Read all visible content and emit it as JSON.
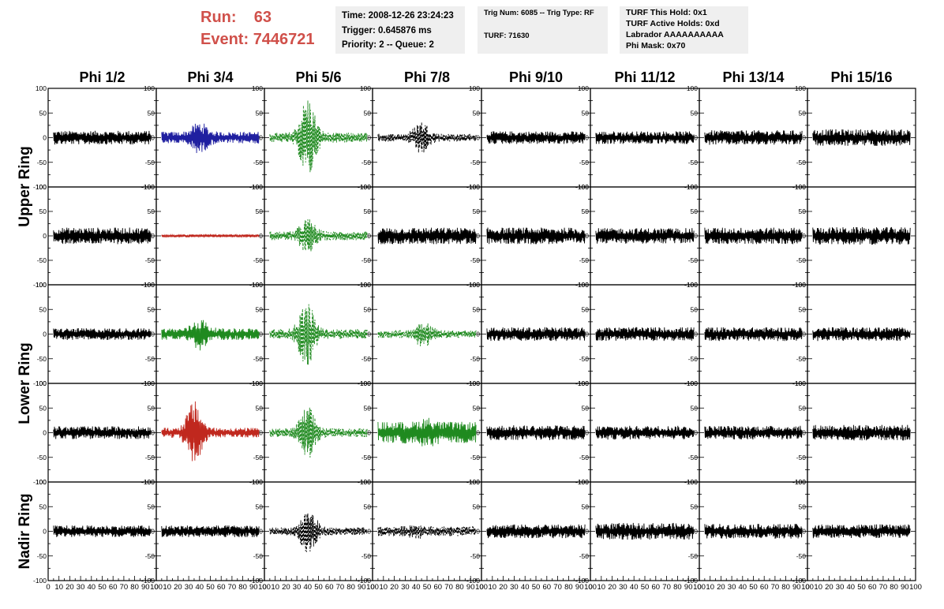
{
  "header": {
    "run_label": "Run:",
    "run_value": "63",
    "event_label": "Event:",
    "event_value": "7446721"
  },
  "info_boxes": {
    "time": [
      "Time: 2008-12-26 23:24:23",
      "Trigger: 0.645876 ms",
      "Priority: 2 -- Queue: 2"
    ],
    "trig": [
      "Trig Num: 6085 -- Trig Type: RF",
      "TURF: 71630"
    ],
    "turf": [
      "TURF This Hold: 0x1",
      "TURF Active Holds: 0xd",
      "Labrador AAAAAAAAAA",
      "Phi Mask: 0x70"
    ]
  },
  "colors": {
    "black": "#000000",
    "blue": "#1f1fa0",
    "green": "#1f8a1f",
    "red": "#c0281e",
    "title_red": "#d0504a",
    "info_bg": "#efefef"
  },
  "chart_data": {
    "type": "line",
    "title": "",
    "column_headers": [
      "Phi 1/2",
      "Phi 3/4",
      "Phi 5/6",
      "Phi 7/8",
      "Phi 9/10",
      "Phi 11/12",
      "Phi 13/14",
      "Phi 15/16"
    ],
    "row_labels": [
      "Upper Ring",
      "Lower Ring",
      "Nadir Ring"
    ],
    "xlim": [
      0,
      100
    ],
    "ylim": [
      -100,
      100
    ],
    "x_ticks": [
      "0",
      "10",
      "20",
      "30",
      "40",
      "50",
      "60",
      "70",
      "80",
      "90",
      "100"
    ],
    "y_ticks": [
      "100",
      "50",
      "0",
      "-50",
      "-100"
    ],
    "grid": false,
    "legend": "none",
    "panels": [
      [
        {
          "color": "black",
          "style": "solid",
          "amp": 14,
          "burst": 0
        },
        {
          "color": "blue",
          "style": "solid",
          "amp": 12,
          "burst": 22,
          "center": 40
        },
        {
          "color": "green",
          "style": "dashed",
          "amp": 10,
          "burst": 75,
          "center": 40
        },
        {
          "color": "black",
          "style": "dashed",
          "amp": 8,
          "burst": 28,
          "center": 45
        },
        {
          "color": "black",
          "style": "solid",
          "amp": 13,
          "burst": 0
        },
        {
          "color": "black",
          "style": "solid",
          "amp": 13,
          "burst": 0
        },
        {
          "color": "black",
          "style": "solid",
          "amp": 15,
          "burst": 0
        },
        {
          "color": "black",
          "style": "solid",
          "amp": 17,
          "burst": 0
        }
      ],
      [
        {
          "color": "black",
          "style": "solid",
          "amp": 17,
          "burst": 0
        },
        {
          "color": "red",
          "style": "solid",
          "amp": 3,
          "burst": 0
        },
        {
          "color": "green",
          "style": "dashed",
          "amp": 9,
          "burst": 28,
          "center": 40
        },
        {
          "color": "black",
          "style": "solid",
          "amp": 17,
          "burst": 0
        },
        {
          "color": "black",
          "style": "solid",
          "amp": 17,
          "burst": 0
        },
        {
          "color": "black",
          "style": "solid",
          "amp": 16,
          "burst": 0
        },
        {
          "color": "black",
          "style": "solid",
          "amp": 17,
          "burst": 0
        },
        {
          "color": "black",
          "style": "solid",
          "amp": 18,
          "burst": 0
        }
      ],
      [
        {
          "color": "black",
          "style": "solid",
          "amp": 12,
          "burst": 0
        },
        {
          "color": "green",
          "style": "solid",
          "amp": 12,
          "burst": 22,
          "center": 40
        },
        {
          "color": "green",
          "style": "dashed",
          "amp": 10,
          "burst": 58,
          "center": 39
        },
        {
          "color": "green",
          "style": "dashed",
          "amp": 8,
          "burst": 22,
          "center": 47
        },
        {
          "color": "black",
          "style": "solid",
          "amp": 14,
          "burst": 0
        },
        {
          "color": "black",
          "style": "solid",
          "amp": 14,
          "burst": 0
        },
        {
          "color": "black",
          "style": "solid",
          "amp": 14,
          "burst": 0
        },
        {
          "color": "black",
          "style": "solid",
          "amp": 14,
          "burst": 0
        }
      ],
      [
        {
          "color": "black",
          "style": "solid",
          "amp": 13,
          "burst": 0
        },
        {
          "color": "red",
          "style": "solid",
          "amp": 10,
          "burst": 55,
          "center": 35
        },
        {
          "color": "green",
          "style": "dashed",
          "amp": 9,
          "burst": 45,
          "center": 40
        },
        {
          "color": "green",
          "style": "solid",
          "amp": 22,
          "burst": 10,
          "center": 50
        },
        {
          "color": "black",
          "style": "solid",
          "amp": 15,
          "burst": 0
        },
        {
          "color": "black",
          "style": "solid",
          "amp": 14,
          "burst": 0
        },
        {
          "color": "black",
          "style": "solid",
          "amp": 14,
          "burst": 0
        },
        {
          "color": "black",
          "style": "solid",
          "amp": 16,
          "burst": 0
        }
      ],
      [
        {
          "color": "black",
          "style": "solid",
          "amp": 12,
          "burst": 0
        },
        {
          "color": "black",
          "style": "solid",
          "amp": 12,
          "burst": 0
        },
        {
          "color": "black",
          "style": "dashed",
          "amp": 8,
          "burst": 38,
          "center": 41
        },
        {
          "color": "black",
          "style": "dashed",
          "amp": 10,
          "burst": 6,
          "center": 40
        },
        {
          "color": "black",
          "style": "solid",
          "amp": 14,
          "burst": 0
        },
        {
          "color": "black",
          "style": "solid",
          "amp": 17,
          "burst": 0
        },
        {
          "color": "black",
          "style": "solid",
          "amp": 15,
          "burst": 0
        },
        {
          "color": "black",
          "style": "solid",
          "amp": 14,
          "burst": 0
        }
      ]
    ]
  }
}
